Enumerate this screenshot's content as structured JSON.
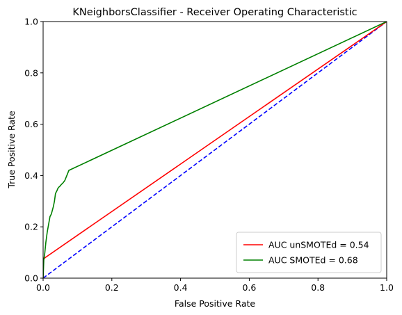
{
  "chart_data": {
    "type": "line",
    "title": "KNeighborsClassifier - Receiver Operating Characteristic",
    "xlabel": "False Positive Rate",
    "ylabel": "True Positive Rate",
    "xlim": [
      0,
      1
    ],
    "ylim": [
      0,
      1
    ],
    "xticks": [
      "0.0",
      "0.2",
      "0.4",
      "0.6",
      "0.8",
      "1.0"
    ],
    "yticks": [
      "0.0",
      "0.2",
      "0.4",
      "0.6",
      "0.8",
      "1.0"
    ],
    "grid": false,
    "legend_position": "lower-right",
    "series": [
      {
        "name": "AUC unSMOTEd = 0.54",
        "color": "#ff0000",
        "style": "solid",
        "x": [
          0.0,
          0.0,
          0.002,
          0.006,
          1.0
        ],
        "y": [
          0.0,
          0.07,
          0.075,
          0.08,
          1.0
        ]
      },
      {
        "name": "AUC SMOTEd = 0.68",
        "color": "#008000",
        "style": "solid",
        "x": [
          0.0,
          0.002,
          0.005,
          0.008,
          0.012,
          0.016,
          0.02,
          0.024,
          0.027,
          0.03,
          0.033,
          0.036,
          0.04,
          0.043,
          0.046,
          0.05,
          0.053,
          0.057,
          0.06,
          0.063,
          0.066,
          0.069,
          0.072,
          0.075,
          1.0
        ],
        "y": [
          0.0,
          0.07,
          0.1,
          0.14,
          0.18,
          0.21,
          0.24,
          0.25,
          0.265,
          0.28,
          0.3,
          0.33,
          0.34,
          0.35,
          0.355,
          0.36,
          0.365,
          0.37,
          0.375,
          0.38,
          0.39,
          0.4,
          0.41,
          0.42,
          1.0
        ]
      },
      {
        "name": "",
        "color": "#0000ff",
        "style": "dashed",
        "x": [
          0,
          1
        ],
        "y": [
          0,
          1
        ]
      }
    ]
  }
}
